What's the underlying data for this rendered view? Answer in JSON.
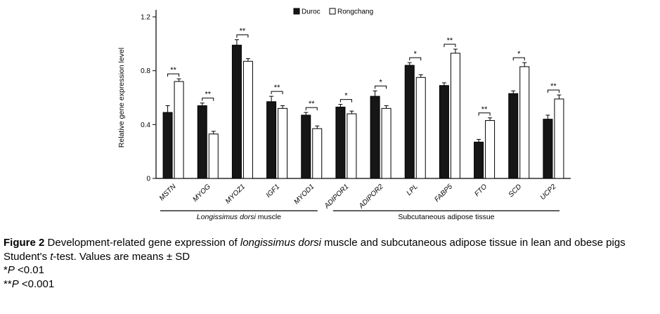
{
  "chart_data": {
    "type": "bar",
    "title": "",
    "ylabel": "Relative gene expression level",
    "ylim": [
      0,
      1.2
    ],
    "yticks": [
      0,
      0.4,
      0.8,
      1.2
    ],
    "grid": false,
    "legend_position": "top",
    "categories": [
      "MSTN",
      "MYOG",
      "MYOZ1",
      "IGF1",
      "MYOD1",
      "ADIPOR1",
      "ADIPOR2",
      "LPL",
      "FABP5",
      "FTO",
      "SCD",
      "UCP2"
    ],
    "series": [
      {
        "name": "Duroc",
        "color": "#161616",
        "values": [
          0.49,
          0.54,
          0.99,
          0.57,
          0.47,
          0.53,
          0.61,
          0.84,
          0.69,
          0.27,
          0.63,
          0.44
        ],
        "errors": [
          0.05,
          0.02,
          0.04,
          0.04,
          0.02,
          0.02,
          0.04,
          0.02,
          0.02,
          0.02,
          0.02,
          0.03
        ]
      },
      {
        "name": "Rongchang",
        "color": "#ffffff",
        "values": [
          0.72,
          0.33,
          0.87,
          0.52,
          0.37,
          0.48,
          0.52,
          0.75,
          0.93,
          0.43,
          0.83,
          0.59
        ],
        "errors": [
          0.02,
          0.02,
          0.02,
          0.02,
          0.02,
          0.02,
          0.02,
          0.02,
          0.03,
          0.02,
          0.03,
          0.03
        ]
      }
    ],
    "significance": [
      "**",
      "**",
      "**",
      "**",
      "**",
      "*",
      "*",
      "*",
      "**",
      "**",
      "*",
      "**"
    ],
    "groups": [
      {
        "label_italic": "Longissimus dorsi",
        "label_rest": " muscle",
        "from": 0,
        "to": 4
      },
      {
        "label_italic": "",
        "label_rest": "Subcutaneous adipose tissue",
        "from": 5,
        "to": 11
      }
    ]
  },
  "caption": {
    "figure_label": "Figure 2",
    "part1": " Development-related gene expression of ",
    "italic1": "longissimus dorsi",
    "part2": " muscle and subcutaneous adipose tissue in lean and obese pigs",
    "line2_part1": "Student's ",
    "line2_italic": "t",
    "line2_part2": "-test. Values are means ± SD",
    "note1_star": "*",
    "note1_p": "P",
    "note1_text": " <0.01",
    "note2_star": "**",
    "note2_p": "P",
    "note2_text": " <0.001"
  }
}
